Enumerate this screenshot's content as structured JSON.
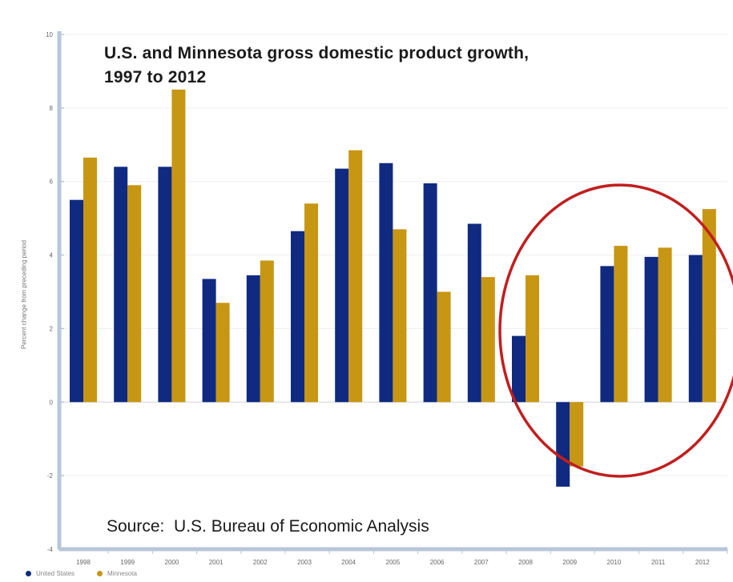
{
  "chart_data": {
    "type": "bar",
    "title_line1": "U.S. and Minnesota gross domestic product growth,",
    "title_line2": "1997 to 2012",
    "ylabel": "Percent change from preceding period",
    "source": "Source:  U.S. Bureau of Economic Analysis",
    "categories": [
      "1998",
      "1999",
      "2000",
      "2001",
      "2002",
      "2003",
      "2004",
      "2005",
      "2006",
      "2007",
      "2008",
      "2009",
      "2010",
      "2011",
      "2012"
    ],
    "series": [
      {
        "name": "United States",
        "color": "#0f2a80",
        "values": [
          5.5,
          6.4,
          6.4,
          3.35,
          3.45,
          4.65,
          6.35,
          6.5,
          5.95,
          4.85,
          1.8,
          -2.3,
          3.7,
          3.95,
          4.0
        ]
      },
      {
        "name": "Minnesota",
        "color": "#c79613",
        "values": [
          6.65,
          5.9,
          8.5,
          2.7,
          3.85,
          5.4,
          6.85,
          4.7,
          3.0,
          3.4,
          3.45,
          -1.75,
          4.25,
          4.2,
          5.25
        ]
      }
    ],
    "yticks": [
      "10",
      "8",
      "6",
      "4",
      "2",
      "0",
      "-2",
      "-4"
    ],
    "ylim": [
      -4,
      10
    ],
    "grid": true,
    "legend_position": "bottom-left",
    "highlight_color": "#c21e1e"
  }
}
